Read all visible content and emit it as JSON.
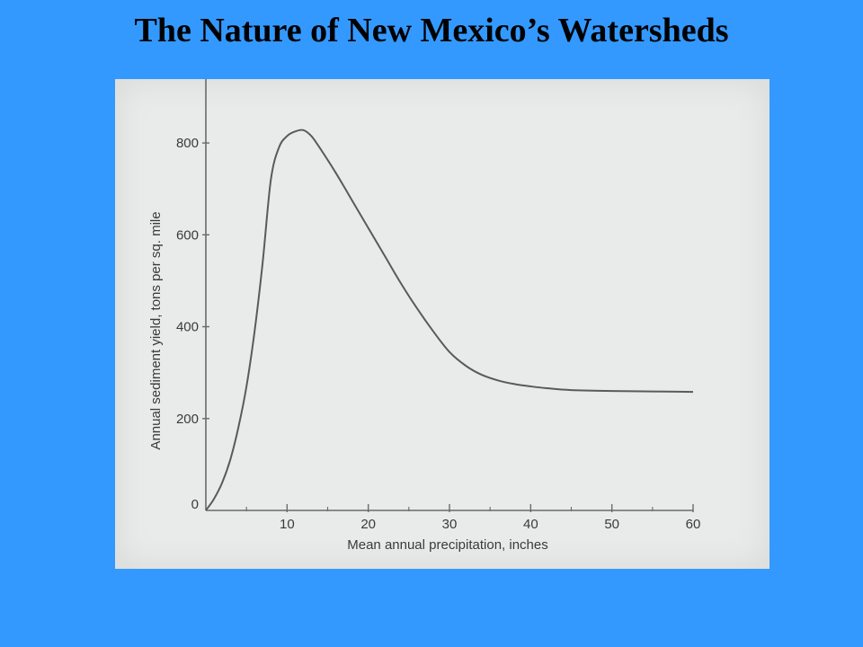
{
  "slide": {
    "title": "The Nature of New Mexico’s Watersheds",
    "background_color": "#3399ff",
    "panel_color": "#e9ebea"
  },
  "chart_data": {
    "type": "line",
    "title": "",
    "xlabel": "Mean annual precipitation, inches",
    "ylabel": "Annual sediment yield, tons per sq. mile",
    "xlim": [
      0,
      60
    ],
    "ylim": [
      0,
      900
    ],
    "x_ticks": [
      0,
      10,
      20,
      30,
      40,
      50,
      60
    ],
    "x_tick_labels": [
      "",
      "10",
      "20",
      "30",
      "40",
      "50",
      "60"
    ],
    "y_ticks": [
      0,
      200,
      400,
      600,
      800
    ],
    "y_tick_labels": [
      "0",
      "200",
      "400",
      "600",
      "800"
    ],
    "grid": false,
    "legend": "none",
    "series": [
      {
        "color": "#5a5a5a",
        "x": [
          0,
          1,
          2,
          3,
          4,
          5,
          6,
          7,
          8,
          9,
          10,
          11,
          12,
          13,
          14,
          16,
          18,
          20,
          22,
          24,
          26,
          28,
          30,
          32,
          34,
          36,
          38,
          40,
          42,
          45,
          50,
          55,
          60
        ],
        "y": [
          0,
          25,
          60,
          110,
          180,
          270,
          390,
          540,
          720,
          790,
          815,
          825,
          828,
          815,
          790,
          735,
          675,
          615,
          555,
          495,
          440,
          390,
          345,
          315,
          295,
          283,
          275,
          270,
          266,
          262,
          260,
          259,
          258
        ]
      }
    ]
  }
}
